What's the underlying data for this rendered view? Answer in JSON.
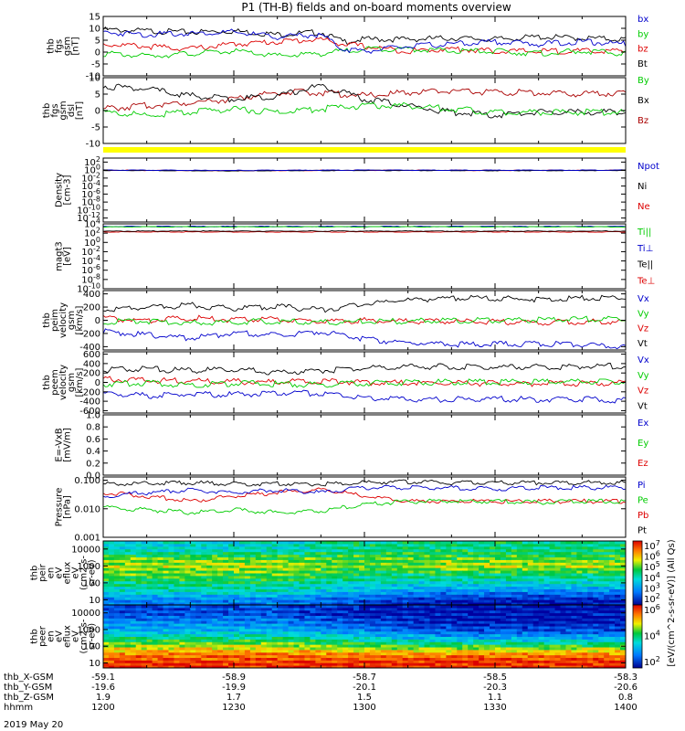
{
  "title": "P1 (TH-B) fields and on-board moments overview",
  "bottom_date": "2019 May 20",
  "time_axis": {
    "row_labels": [
      "thb_X-GSM",
      "thb_Y-GSM",
      "thb_Z-GSM",
      "hhmm"
    ],
    "columns": [
      {
        "time_min": 0,
        "values": [
          "-59.1",
          "-19.6",
          "1.9",
          "1200"
        ]
      },
      {
        "time_min": 30,
        "values": [
          "-58.9",
          "-19.9",
          "1.7",
          "1230"
        ]
      },
      {
        "time_min": 60,
        "values": [
          "-58.7",
          "-20.1",
          "1.5",
          "1300"
        ]
      },
      {
        "time_min": 90,
        "values": [
          "-58.5",
          "-20.3",
          "1.1",
          "1330"
        ]
      },
      {
        "time_min": 120,
        "values": [
          "-58.3",
          "-20.6",
          "0.8",
          "1400"
        ]
      }
    ]
  },
  "colorbar": {
    "label": "[eV/(cm^2-s-sr-eV)] (All Qs)",
    "panel1_ticks": [
      "10^7",
      "10^6",
      "10^5",
      "10^4",
      "10^3",
      "10^2"
    ],
    "panel2_ticks": [
      "10^6",
      "10^4",
      "10^2"
    ]
  },
  "chart_data": [
    {
      "type": "line",
      "ylabel_lines": [
        "thb",
        "fgs",
        "gsm",
        "[nT]"
      ],
      "ylim": [
        -10,
        15
      ],
      "yticks": [
        "-10",
        "-5",
        "0",
        "5",
        "10",
        "15"
      ],
      "series": [
        {
          "name": "Bt",
          "color": "#000000",
          "x": [
            0,
            10,
            20,
            30,
            40,
            50,
            55,
            60,
            70,
            80,
            90,
            100,
            110,
            120
          ],
          "y": [
            10,
            9.5,
            9,
            9.5,
            8,
            9,
            5,
            6,
            6,
            6.5,
            6,
            7,
            6.5,
            6
          ]
        },
        {
          "name": "bz",
          "color": "#dd0000",
          "x": [
            0,
            10,
            20,
            30,
            40,
            50,
            55,
            60,
            70,
            80,
            90,
            100,
            110,
            120
          ],
          "y": [
            4,
            3,
            2,
            4,
            5,
            6,
            4,
            3,
            1,
            2,
            1,
            1,
            1,
            1
          ]
        },
        {
          "name": "by",
          "color": "#00cc00",
          "x": [
            0,
            10,
            20,
            30,
            40,
            50,
            55,
            60,
            70,
            80,
            90,
            100,
            110,
            120
          ],
          "y": [
            0,
            -1,
            0,
            1,
            -1,
            0,
            1,
            2,
            2,
            1,
            1,
            0,
            1,
            0
          ]
        },
        {
          "name": "bx",
          "color": "#0000cc",
          "x": [
            0,
            10,
            20,
            30,
            40,
            50,
            55,
            60,
            70,
            80,
            90,
            100,
            110,
            120
          ],
          "y": [
            9,
            8,
            8.5,
            9,
            7,
            8,
            2,
            1,
            3,
            4,
            5,
            4,
            5,
            4
          ]
        }
      ]
    },
    {
      "type": "line",
      "ylabel_lines": [
        "thb",
        "fgs",
        "gsm",
        "dsl",
        "[nT]"
      ],
      "ylim": [
        -10,
        10
      ],
      "yticks": [
        "-10",
        "-5",
        "0",
        "5",
        "10"
      ],
      "series": [
        {
          "name": "Bz",
          "color": "#aa0000",
          "x": [
            0,
            10,
            20,
            30,
            40,
            50,
            60,
            70,
            80,
            90,
            100,
            110,
            120
          ],
          "y": [
            1,
            2,
            3,
            4,
            6,
            6,
            5,
            6,
            6.5,
            6,
            6,
            5.5,
            6
          ]
        },
        {
          "name": "Bx",
          "color": "#000000",
          "x": [
            0,
            10,
            20,
            30,
            40,
            50,
            60,
            70,
            80,
            90,
            100,
            110,
            120
          ],
          "y": [
            8,
            7,
            5,
            4,
            5,
            8,
            4,
            2,
            0,
            -1,
            0,
            0,
            0
          ]
        },
        {
          "name": "By",
          "color": "#00cc00",
          "x": [
            0,
            10,
            20,
            30,
            40,
            50,
            60,
            70,
            80,
            90,
            100,
            110,
            120
          ],
          "y": [
            0,
            -1,
            0,
            1,
            0,
            1,
            2,
            2,
            1,
            0,
            0,
            0,
            0
          ]
        }
      ]
    },
    {
      "type": "line",
      "ylabel_lines": [
        "Density",
        "[cm-3]"
      ],
      "yscale": "log",
      "ylim": [
        1e-13,
        1000
      ],
      "yticks": [
        "10^2",
        "10^0",
        "10^-2",
        "10^-4",
        "10^-6",
        "10^-8",
        "10^-10",
        "10^-12"
      ],
      "series": [
        {
          "name": "Ne",
          "color": "#dd0000",
          "x": [
            0,
            30,
            60,
            90,
            120
          ],
          "y": [
            1,
            0.8,
            1,
            0.9,
            1
          ]
        },
        {
          "name": "Ni",
          "color": "#000000",
          "x": [
            0,
            30,
            60,
            90,
            120
          ],
          "y": [
            0.9,
            0.7,
            0.9,
            0.8,
            0.9
          ]
        },
        {
          "name": "Npot",
          "color": "#0000cc",
          "x": [
            0,
            30,
            60,
            90,
            120
          ],
          "y": [
            1.1,
            0.9,
            1.1,
            1,
            1.1
          ]
        }
      ]
    },
    {
      "type": "line",
      "ylabel_lines": [
        "magt3",
        "[eV]"
      ],
      "yscale": "log",
      "ylim": [
        1e-10,
        10000
      ],
      "yticks": [
        "10^4",
        "10^2",
        "10^0",
        "10^-2",
        "10^-4",
        "10^-6",
        "10^-8",
        "10^-10"
      ],
      "series": [
        {
          "name": "Te⊥",
          "color": "#dd0000",
          "x": [
            0,
            30,
            60,
            90,
            120
          ],
          "y": [
            200,
            200,
            200,
            200,
            200
          ]
        },
        {
          "name": "Te||",
          "color": "#000000",
          "x": [
            0,
            30,
            60,
            90,
            120
          ],
          "y": [
            300,
            300,
            300,
            300,
            300
          ]
        },
        {
          "name": "Ti⊥",
          "color": "#0000cc",
          "x": [
            0,
            30,
            60,
            90,
            120
          ],
          "y": [
            3000,
            3000,
            3000,
            3000,
            3000
          ]
        },
        {
          "name": "Ti||",
          "color": "#00cc00",
          "x": [
            0,
            30,
            60,
            90,
            120
          ],
          "y": [
            2500,
            2500,
            2500,
            2500,
            2500
          ]
        }
      ]
    },
    {
      "type": "line",
      "ylabel_lines": [
        "thb",
        "peim",
        "velocity",
        "gsm",
        "[km/s]"
      ],
      "ylim": [
        -450,
        450
      ],
      "yticks": [
        "-400",
        "-200",
        "0",
        "200",
        "400"
      ],
      "series": [
        {
          "name": "Vt",
          "color": "#000000",
          "x": [
            0,
            10,
            20,
            30,
            40,
            50,
            60,
            70,
            80,
            90,
            100,
            110,
            120
          ],
          "y": [
            180,
            220,
            250,
            200,
            230,
            180,
            270,
            330,
            360,
            350,
            340,
            360,
            380
          ]
        },
        {
          "name": "Vz",
          "color": "#dd0000",
          "x": [
            0,
            10,
            20,
            30,
            40,
            50,
            60,
            70,
            80,
            90,
            100,
            110,
            120
          ],
          "y": [
            50,
            20,
            60,
            30,
            40,
            0,
            20,
            10,
            0,
            0,
            -10,
            0,
            10
          ]
        },
        {
          "name": "Vy",
          "color": "#00cc00",
          "x": [
            0,
            10,
            20,
            30,
            40,
            50,
            60,
            70,
            80,
            90,
            100,
            110,
            120
          ],
          "y": [
            0,
            10,
            -20,
            0,
            10,
            -10,
            0,
            10,
            20,
            20,
            30,
            40,
            40
          ]
        },
        {
          "name": "Vx",
          "color": "#0000cc",
          "x": [
            0,
            10,
            20,
            30,
            40,
            50,
            60,
            70,
            80,
            90,
            100,
            110,
            120
          ],
          "y": [
            -150,
            -200,
            -250,
            -170,
            -200,
            -150,
            -260,
            -320,
            -340,
            -340,
            -330,
            -350,
            -380
          ]
        }
      ]
    },
    {
      "type": "line",
      "ylabel_lines": [
        "thb",
        "peem",
        "velocity",
        "gsm",
        "[km/s]"
      ],
      "ylim": [
        -650,
        650
      ],
      "yticks": [
        "-600",
        "-400",
        "-200",
        "0",
        "200",
        "400",
        "600"
      ],
      "series": [
        {
          "name": "Vt",
          "color": "#000000",
          "x": [
            0,
            10,
            20,
            30,
            40,
            50,
            60,
            70,
            80,
            90,
            100,
            110,
            120
          ],
          "y": [
            300,
            320,
            280,
            300,
            250,
            280,
            330,
            360,
            370,
            360,
            360,
            370,
            380
          ]
        },
        {
          "name": "Vz",
          "color": "#dd0000",
          "x": [
            0,
            10,
            20,
            30,
            40,
            50,
            60,
            70,
            80,
            90,
            100,
            110,
            120
          ],
          "y": [
            100,
            80,
            60,
            50,
            40,
            60,
            30,
            20,
            20,
            10,
            10,
            10,
            20
          ]
        },
        {
          "name": "Vy",
          "color": "#00cc00",
          "x": [
            0,
            10,
            20,
            30,
            40,
            50,
            60,
            70,
            80,
            90,
            100,
            110,
            120
          ],
          "y": [
            0,
            20,
            -20,
            10,
            0,
            -20,
            20,
            30,
            40,
            40,
            50,
            50,
            50
          ]
        },
        {
          "name": "Vx",
          "color": "#0000cc",
          "x": [
            0,
            10,
            20,
            30,
            40,
            50,
            60,
            70,
            80,
            90,
            100,
            110,
            120
          ],
          "y": [
            -200,
            -250,
            -220,
            -230,
            -180,
            -200,
            -300,
            -320,
            -330,
            -320,
            -330,
            -330,
            -350
          ]
        }
      ]
    },
    {
      "type": "line",
      "ylabel_lines": [
        "E=-VxB",
        "[mV/m]"
      ],
      "ylim": [
        0,
        1
      ],
      "yticks": [
        "0.0",
        "0.2",
        "0.4",
        "0.6",
        "0.8",
        "1.0"
      ],
      "series": [
        {
          "name": "Ez",
          "color": "#dd0000",
          "x": [],
          "y": []
        },
        {
          "name": "Ey",
          "color": "#00cc00",
          "x": [],
          "y": []
        },
        {
          "name": "Ex",
          "color": "#0000cc",
          "x": [],
          "y": []
        }
      ]
    },
    {
      "type": "line",
      "ylabel_lines": [
        "Pressure",
        "[nPa]"
      ],
      "yscale": "log",
      "ylim": [
        0.001,
        0.13
      ],
      "yticks": [
        "0.100",
        "0.010",
        "0.001"
      ],
      "series": [
        {
          "name": "Pt",
          "color": "#000000",
          "x": [
            0,
            10,
            20,
            30,
            40,
            50,
            60,
            70,
            80,
            90,
            100,
            110,
            120
          ],
          "y": [
            0.08,
            0.085,
            0.09,
            0.08,
            0.085,
            0.08,
            0.09,
            0.095,
            0.09,
            0.09,
            0.09,
            0.09,
            0.09
          ]
        },
        {
          "name": "Pb",
          "color": "#dd0000",
          "x": [
            0,
            10,
            20,
            30,
            40,
            50,
            60,
            70,
            80,
            90,
            100,
            110,
            120
          ],
          "y": [
            0.04,
            0.03,
            0.02,
            0.03,
            0.04,
            0.05,
            0.03,
            0.02,
            0.02,
            0.02,
            0.02,
            0.02,
            0.02
          ]
        },
        {
          "name": "Pe",
          "color": "#00cc00",
          "x": [
            0,
            10,
            20,
            30,
            40,
            50,
            60,
            70,
            80,
            90,
            100,
            110,
            120
          ],
          "y": [
            0.012,
            0.01,
            0.008,
            0.01,
            0.008,
            0.009,
            0.015,
            0.02,
            0.02,
            0.02,
            0.018,
            0.02,
            0.02
          ]
        },
        {
          "name": "Pi",
          "color": "#0000cc",
          "x": [
            0,
            10,
            20,
            30,
            40,
            50,
            60,
            70,
            80,
            90,
            100,
            110,
            120
          ],
          "y": [
            0.03,
            0.04,
            0.05,
            0.04,
            0.05,
            0.04,
            0.06,
            0.06,
            0.06,
            0.055,
            0.06,
            0.06,
            0.06
          ]
        }
      ]
    },
    {
      "type": "heatmap",
      "ylabel_lines": [
        "thb",
        "peir",
        "en",
        "eV",
        "eflux",
        "eV",
        "(cm2-s-",
        "sr-eV)"
      ],
      "yscale": "log",
      "ylim": [
        5,
        30000
      ],
      "yticks": [
        "10000",
        "1000",
        "100",
        "10"
      ],
      "energies_eV": [
        10,
        30,
        100,
        300,
        1000,
        3000,
        10000
      ],
      "times_min": [
        0,
        20,
        40,
        60,
        80,
        100,
        120
      ],
      "log_eflux": [
        [
          3.5,
          3.5,
          3.5,
          3.0,
          2.5,
          2.5,
          2.5
        ],
        [
          4.5,
          4.5,
          4.5,
          4.0,
          3.5,
          3.5,
          3.5
        ],
        [
          5.0,
          5.0,
          5.0,
          4.5,
          4.5,
          4.5,
          4.5
        ],
        [
          5.5,
          5.5,
          5.5,
          5.0,
          5.0,
          5.0,
          5.0
        ],
        [
          6.0,
          6.0,
          6.0,
          5.5,
          6.0,
          6.0,
          6.0
        ],
        [
          5.5,
          5.5,
          5.5,
          5.5,
          5.5,
          5.5,
          5.5
        ],
        [
          4.5,
          4.5,
          4.5,
          5.0,
          5.0,
          5.0,
          5.0
        ]
      ]
    },
    {
      "type": "heatmap",
      "ylabel_lines": [
        "thb",
        "peer",
        "en",
        "eV",
        "eflux",
        "eV",
        "(cm2-s-",
        "sr-eV)"
      ],
      "yscale": "log",
      "ylim": [
        5,
        30000
      ],
      "yticks": [
        "10000",
        "1000",
        "100",
        "10"
      ],
      "energies_eV": [
        10,
        30,
        100,
        300,
        1000,
        3000,
        10000
      ],
      "times_min": [
        0,
        20,
        40,
        60,
        80,
        100,
        120
      ],
      "log_eflux": [
        [
          7.5,
          7.5,
          7.5,
          7.5,
          7.5,
          7.5,
          7.5
        ],
        [
          7.0,
          7.0,
          7.0,
          7.0,
          7.0,
          7.0,
          7.0
        ],
        [
          6.0,
          6.0,
          6.0,
          5.5,
          5.5,
          5.5,
          5.5
        ],
        [
          5.0,
          5.0,
          5.0,
          4.5,
          4.0,
          4.0,
          4.0
        ],
        [
          4.0,
          4.0,
          4.0,
          3.5,
          3.0,
          3.0,
          3.0
        ],
        [
          3.5,
          3.5,
          3.5,
          3.0,
          2.5,
          2.5,
          2.5
        ],
        [
          3.0,
          3.0,
          3.0,
          2.5,
          2.5,
          2.5,
          2.5
        ]
      ]
    }
  ]
}
